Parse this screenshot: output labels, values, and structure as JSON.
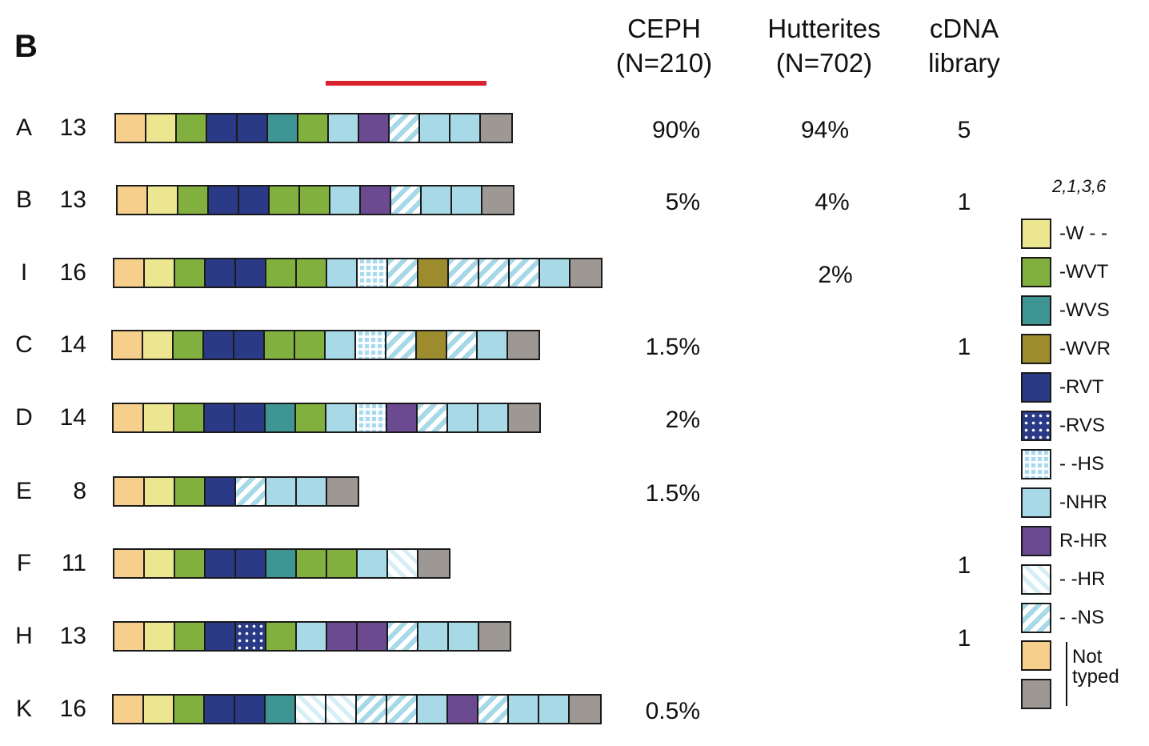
{
  "panel_label": "B",
  "columns": [
    {
      "label": "CEPH\n(N=210)"
    },
    {
      "label": "Hutterites\n(N=702)"
    },
    {
      "label": "cDNA\nlibrary"
    }
  ],
  "legend_title": "2,1,3,6",
  "legend": [
    {
      "key": "W",
      "label": "-W - -"
    },
    {
      "key": "WVT",
      "label": "-WVT"
    },
    {
      "key": "WVS",
      "label": "-WVS"
    },
    {
      "key": "WVR",
      "label": "-WVR"
    },
    {
      "key": "RVT",
      "label": "-RVT"
    },
    {
      "key": "RVS",
      "label": "-RVS"
    },
    {
      "key": "HS",
      "label": "- -HS"
    },
    {
      "key": "NHR",
      "label": "-NHR"
    },
    {
      "key": "RHR",
      "label": "R-HR"
    },
    {
      "key": "HR",
      "label": "- -HR"
    },
    {
      "key": "NS",
      "label": "- -NS"
    }
  ],
  "not_typed_label": "Not\ntyped",
  "colors": {
    "W": "#ede690",
    "WVT": "#82b03e",
    "WVS": "#3f9494",
    "WVR": "#9c8c2e",
    "RVT": "#2b3a86",
    "NHR": "#a8d9e6",
    "RHR": "#6b4a91",
    "NT1": "#f7cf8c",
    "NT2": "#9e9895",
    "accent_red": "#d8232f"
  },
  "rows": [
    {
      "id": "A",
      "count": "13",
      "ceph": "90%",
      "hutterites": "94%",
      "cdna": "5",
      "segments": [
        "NT1",
        "W",
        "WVT",
        "RVT",
        "RVT",
        "WVS",
        "WVT",
        "NHR",
        "RHR",
        "NS",
        "NHR",
        "NHR",
        "NT2"
      ]
    },
    {
      "id": "B",
      "count": "13",
      "ceph": "5%",
      "hutterites": "4%",
      "cdna": "1",
      "segments": [
        "NT1",
        "W",
        "WVT",
        "RVT",
        "RVT",
        "WVT",
        "WVT",
        "NHR",
        "RHR",
        "NS",
        "NHR",
        "NHR",
        "NT2"
      ]
    },
    {
      "id": "I",
      "count": "16",
      "ceph": "",
      "hutterites": "2%",
      "cdna": "",
      "segments": [
        "NT1",
        "W",
        "WVT",
        "RVT",
        "RVT",
        "WVT",
        "WVT",
        "NHR",
        "HS",
        "NS",
        "WVR",
        "NS",
        "NS",
        "NS",
        "NHR",
        "NT2"
      ]
    },
    {
      "id": "C",
      "count": "14",
      "ceph": "1.5%",
      "hutterites": "",
      "cdna": "1",
      "segments": [
        "NT1",
        "W",
        "WVT",
        "RVT",
        "RVT",
        "WVT",
        "WVT",
        "NHR",
        "HS",
        "NS",
        "WVR",
        "NS",
        "NHR",
        "NT2"
      ]
    },
    {
      "id": "D",
      "count": "14",
      "ceph": "2%",
      "hutterites": "",
      "cdna": "",
      "segments": [
        "NT1",
        "W",
        "WVT",
        "RVT",
        "RVT",
        "WVS",
        "WVT",
        "NHR",
        "HS",
        "RHR",
        "NS",
        "NHR",
        "NHR",
        "NT2"
      ]
    },
    {
      "id": "E",
      "count": "8",
      "ceph": "1.5%",
      "hutterites": "",
      "cdna": "",
      "segments": [
        "NT1",
        "W",
        "WVT",
        "RVT",
        "NS",
        "NHR",
        "NHR",
        "NT2"
      ]
    },
    {
      "id": "F",
      "count": "11",
      "ceph": "",
      "hutterites": "",
      "cdna": "1",
      "segments": [
        "NT1",
        "W",
        "WVT",
        "RVT",
        "RVT",
        "WVS",
        "WVT",
        "WVT",
        "NHR",
        "HR",
        "NT2"
      ]
    },
    {
      "id": "H",
      "count": "13",
      "ceph": "",
      "hutterites": "",
      "cdna": "1",
      "segments": [
        "NT1",
        "W",
        "WVT",
        "RVT",
        "RVS",
        "WVT",
        "NHR",
        "RHR",
        "RHR",
        "NS",
        "NHR",
        "NHR",
        "NT2"
      ]
    },
    {
      "id": "K",
      "count": "16",
      "ceph": "0.5%",
      "hutterites": "",
      "cdna": "",
      "segments": [
        "NT1",
        "W",
        "WVT",
        "RVT",
        "RVT",
        "WVS",
        "HR",
        "HR",
        "NS",
        "NS",
        "NHR",
        "RHR",
        "NS",
        "NHR",
        "NHR",
        "NT2"
      ]
    }
  ]
}
